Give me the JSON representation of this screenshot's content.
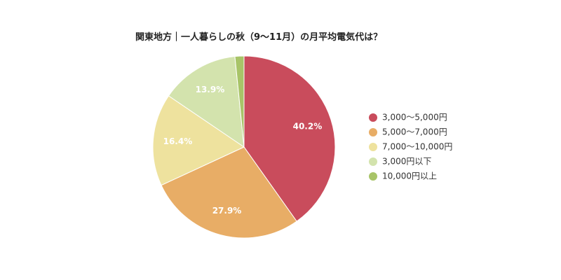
{
  "chart_data": {
    "type": "pie",
    "title": "関東地方｜一人暮らしの秋（9〜11月）の月平均電気代は？",
    "slices": [
      {
        "label": "3,000〜5,000円",
        "value": 40.2,
        "value_label": "40.2%",
        "color": "#c94c5c"
      },
      {
        "label": "5,000〜7,000円",
        "value": 27.9,
        "value_label": "27.9%",
        "color": "#e8ad66"
      },
      {
        "label": "7,000〜10,000円",
        "value": 16.4,
        "value_label": "16.4%",
        "color": "#eee29e"
      },
      {
        "label": "3,000円以下",
        "value": 13.9,
        "value_label": "13.9%",
        "color": "#d3e3ad"
      },
      {
        "label": "10,000円以上",
        "value": 1.6,
        "value_label": "",
        "color": "#a8c468"
      }
    ],
    "legend_position": "right"
  }
}
